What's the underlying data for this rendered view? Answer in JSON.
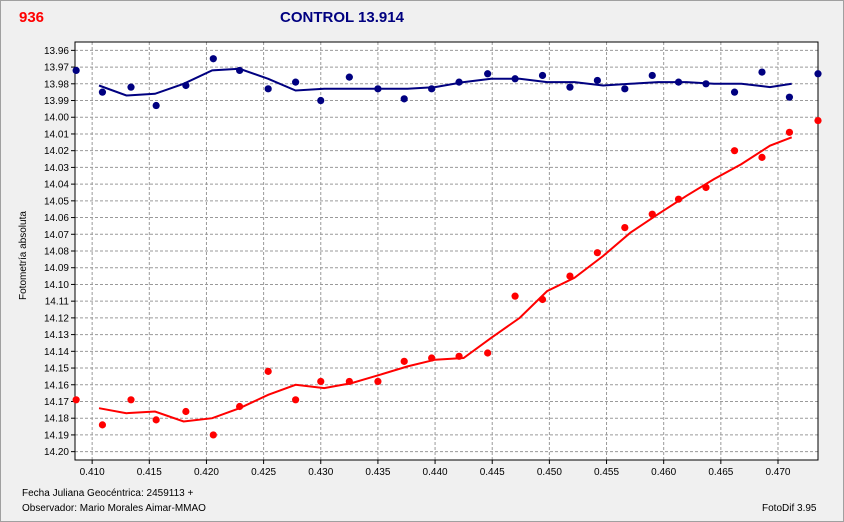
{
  "header": {
    "id_label": "936",
    "title": "CONTROL 13.914"
  },
  "footer": {
    "jd_label": "Fecha Juliana Geocéntrica: 2459113 +",
    "observer_label": "Observador: Mario Morales Aimar-MMAO",
    "software_label": "FotoDif 3.95"
  },
  "chart_data": {
    "type": "scatter",
    "ylabel": "Fotometría absoluta",
    "xlabel": "Fecha Juliana Geocéntrica: 2459113 +",
    "xlim": [
      0.4085,
      0.4735
    ],
    "ylim": [
      13.955,
      14.205
    ],
    "y_inverted": true,
    "grid": true,
    "x_ticks": [
      "0.410",
      "0.415",
      "0.420",
      "0.425",
      "0.430",
      "0.435",
      "0.440",
      "0.445",
      "0.450",
      "0.455",
      "0.460",
      "0.465",
      "0.470"
    ],
    "y_ticks": [
      "13.96",
      "13.97",
      "13.98",
      "13.99",
      "14.00",
      "14.01",
      "14.02",
      "14.03",
      "14.04",
      "14.05",
      "14.06",
      "14.07",
      "14.08",
      "14.09",
      "14.10",
      "14.11",
      "14.12",
      "14.13",
      "14.14",
      "14.15",
      "14.16",
      "14.17",
      "14.18",
      "14.19",
      "14.20"
    ],
    "series": [
      {
        "color": "#000080",
        "points": [
          [
            0.4086,
            13.972
          ],
          [
            0.4109,
            13.985
          ],
          [
            0.4134,
            13.982
          ],
          [
            0.4156,
            13.993
          ],
          [
            0.4182,
            13.981
          ],
          [
            0.4206,
            13.965
          ],
          [
            0.4229,
            13.972
          ],
          [
            0.4254,
            13.983
          ],
          [
            0.4278,
            13.979
          ],
          [
            0.43,
            13.99
          ],
          [
            0.4325,
            13.976
          ],
          [
            0.435,
            13.983
          ],
          [
            0.4373,
            13.989
          ],
          [
            0.4397,
            13.983
          ],
          [
            0.4421,
            13.979
          ],
          [
            0.4446,
            13.974
          ],
          [
            0.447,
            13.977
          ],
          [
            0.4494,
            13.975
          ],
          [
            0.4518,
            13.982
          ],
          [
            0.4542,
            13.978
          ],
          [
            0.4566,
            13.983
          ],
          [
            0.459,
            13.975
          ],
          [
            0.4613,
            13.979
          ],
          [
            0.4637,
            13.98
          ],
          [
            0.4662,
            13.985
          ],
          [
            0.4686,
            13.973
          ],
          [
            0.471,
            13.988
          ],
          [
            0.4735,
            13.974
          ]
        ],
        "trend": [
          [
            0.4106,
            13.981
          ],
          [
            0.413,
            13.987
          ],
          [
            0.4155,
            13.986
          ],
          [
            0.418,
            13.98
          ],
          [
            0.4205,
            13.972
          ],
          [
            0.4229,
            13.971
          ],
          [
            0.4254,
            13.977
          ],
          [
            0.4278,
            13.984
          ],
          [
            0.4303,
            13.983
          ],
          [
            0.4327,
            13.983
          ],
          [
            0.4352,
            13.983
          ],
          [
            0.4376,
            13.983
          ],
          [
            0.44,
            13.982
          ],
          [
            0.4425,
            13.979
          ],
          [
            0.4449,
            13.977
          ],
          [
            0.4474,
            13.977
          ],
          [
            0.4498,
            13.979
          ],
          [
            0.4522,
            13.979
          ],
          [
            0.4547,
            13.981
          ],
          [
            0.4571,
            13.98
          ],
          [
            0.4595,
            13.979
          ],
          [
            0.462,
            13.979
          ],
          [
            0.4644,
            13.98
          ],
          [
            0.4668,
            13.98
          ],
          [
            0.4693,
            13.982
          ],
          [
            0.4712,
            13.98
          ]
        ]
      },
      {
        "color": "#ff0000",
        "points": [
          [
            0.4086,
            14.169
          ],
          [
            0.4109,
            14.184
          ],
          [
            0.4134,
            14.169
          ],
          [
            0.4156,
            14.181
          ],
          [
            0.4182,
            14.176
          ],
          [
            0.4206,
            14.19
          ],
          [
            0.4229,
            14.173
          ],
          [
            0.4254,
            14.152
          ],
          [
            0.4278,
            14.169
          ],
          [
            0.43,
            14.158
          ],
          [
            0.4325,
            14.158
          ],
          [
            0.435,
            14.158
          ],
          [
            0.4373,
            14.146
          ],
          [
            0.4397,
            14.144
          ],
          [
            0.4421,
            14.143
          ],
          [
            0.4446,
            14.141
          ],
          [
            0.447,
            14.107
          ],
          [
            0.4494,
            14.109
          ],
          [
            0.4518,
            14.095
          ],
          [
            0.4542,
            14.081
          ],
          [
            0.4566,
            14.066
          ],
          [
            0.459,
            14.058
          ],
          [
            0.4613,
            14.049
          ],
          [
            0.4637,
            14.042
          ],
          [
            0.4662,
            14.02
          ],
          [
            0.4686,
            14.024
          ],
          [
            0.471,
            14.009
          ],
          [
            0.4735,
            14.002
          ]
        ],
        "trend": [
          [
            0.4106,
            14.174
          ],
          [
            0.413,
            14.177
          ],
          [
            0.4155,
            14.176
          ],
          [
            0.418,
            14.182
          ],
          [
            0.4205,
            14.18
          ],
          [
            0.4229,
            14.174
          ],
          [
            0.4254,
            14.166
          ],
          [
            0.4278,
            14.16
          ],
          [
            0.4303,
            14.162
          ],
          [
            0.4327,
            14.159
          ],
          [
            0.4352,
            14.154
          ],
          [
            0.4376,
            14.149
          ],
          [
            0.44,
            14.145
          ],
          [
            0.4425,
            14.144
          ],
          [
            0.4449,
            14.132
          ],
          [
            0.4474,
            14.12
          ],
          [
            0.4498,
            14.104
          ],
          [
            0.4522,
            14.096
          ],
          [
            0.4547,
            14.083
          ],
          [
            0.4571,
            14.069
          ],
          [
            0.4595,
            14.058
          ],
          [
            0.462,
            14.047
          ],
          [
            0.4644,
            14.037
          ],
          [
            0.4668,
            14.028
          ],
          [
            0.4693,
            14.017
          ],
          [
            0.4712,
            14.012
          ]
        ]
      }
    ]
  }
}
